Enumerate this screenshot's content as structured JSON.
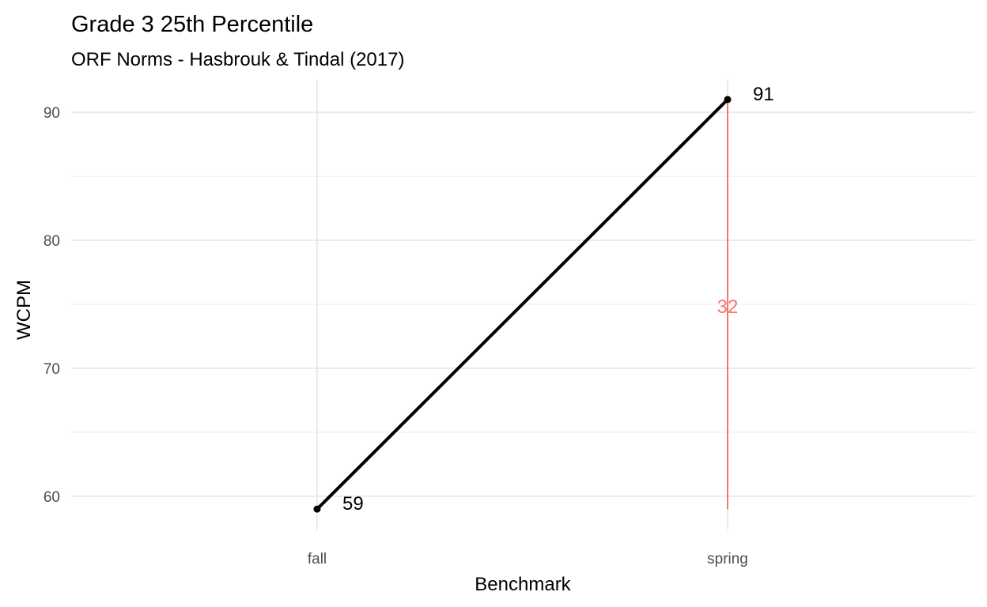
{
  "chart_data": {
    "type": "line",
    "title": "Grade 3 25th Percentile",
    "subtitle": "ORF Norms - Hasbrouk & Tindal (2017)",
    "xlabel": "Benchmark",
    "ylabel": "WCPM",
    "categories": [
      "fall",
      "spring"
    ],
    "series": [
      {
        "values": [
          59,
          91
        ]
      }
    ],
    "point_labels": [
      "59",
      "91"
    ],
    "ylim": [
      57.4,
      92.6
    ],
    "yticks": [
      60,
      70,
      80,
      90
    ],
    "grid": true,
    "legend": "none",
    "difference": {
      "from_value": 59,
      "to_value": 91,
      "at_category": "spring",
      "label": "32"
    },
    "colors": {
      "line": "#000000",
      "difference": "#f8766d",
      "grid": "#ebebeb",
      "tick_text": "#4d4d4d"
    }
  }
}
